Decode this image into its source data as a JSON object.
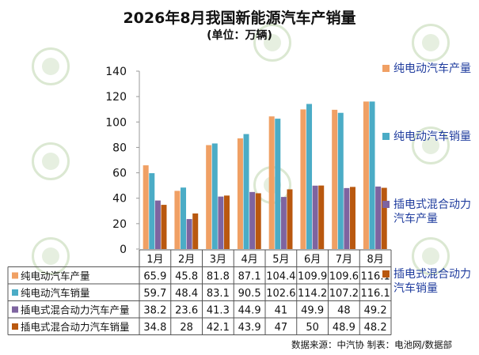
{
  "title": "2026年8月我国新能源汽车产销量",
  "subtitle": "(单位：万辆)",
  "source": "数据来源：中汽协  制表：电池网/数据部",
  "watermark_text": "电池网",
  "chart_data": {
    "type": "bar",
    "title": "2026年8月我国新能源汽车产销量",
    "subtitle": "(单位：万辆)",
    "categories": [
      "1月",
      "2月",
      "3月",
      "4月",
      "5月",
      "6月",
      "7月",
      "8月"
    ],
    "ylim": [
      0,
      140
    ],
    "yticks": [
      0,
      20,
      40,
      60,
      80,
      100,
      120,
      140
    ],
    "grid": false,
    "legend_position": "right",
    "data_table": true,
    "series": [
      {
        "name": "纯电动汽车产量",
        "color": "#f0a064",
        "values": [
          65.9,
          45.8,
          81.8,
          87.1,
          104.4,
          109.9,
          109.6,
          116.1
        ]
      },
      {
        "name": "纯电动汽车销量",
        "color": "#4bacc6",
        "values": [
          59.7,
          48.4,
          83.1,
          90.5,
          102.6,
          114.2,
          107.2,
          116.1
        ]
      },
      {
        "name": "插电式混合动力汽车产量",
        "color": "#7e64a0",
        "values": [
          38.2,
          23.6,
          41.3,
          44.9,
          41,
          49.9,
          48,
          49.2
        ]
      },
      {
        "name": "插电式混合动力汽车销量",
        "color": "#b9580f",
        "values": [
          34.8,
          28,
          42.1,
          43.9,
          47,
          50,
          48.9,
          48.2
        ]
      }
    ]
  }
}
